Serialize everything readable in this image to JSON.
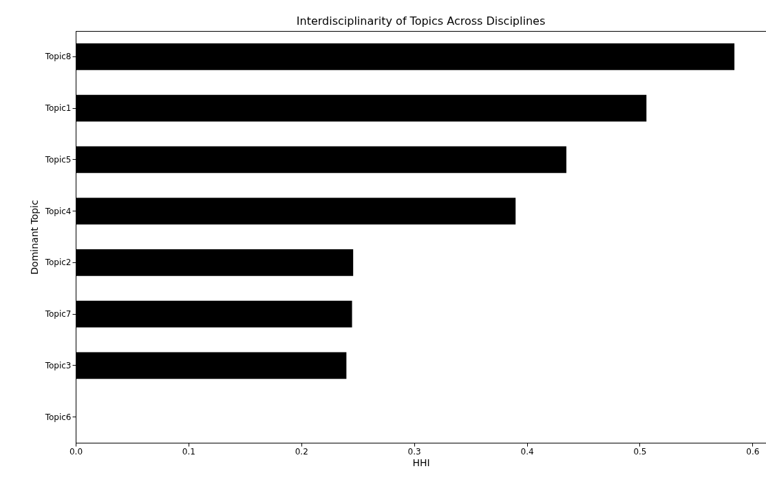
{
  "chart_data": {
    "type": "bar",
    "orientation": "horizontal",
    "title": "Interdisciplinarity of Topics Across Disciplines",
    "xlabel": "HHI",
    "ylabel": "Dominant Topic",
    "categories": [
      "Topic8",
      "Topic1",
      "Topic5",
      "Topic4",
      "Topic2",
      "Topic7",
      "Topic3",
      "Topic6"
    ],
    "values": [
      0.584,
      0.506,
      0.435,
      0.39,
      0.246,
      0.245,
      0.24,
      0
    ],
    "color": "#000000",
    "xlim": [
      0,
      0.612
    ],
    "xticks": [
      {
        "value": 0,
        "label": "0.0"
      },
      0.1,
      0.2,
      0.3,
      0.4,
      0.5,
      0.6
    ],
    "grid": false
  }
}
